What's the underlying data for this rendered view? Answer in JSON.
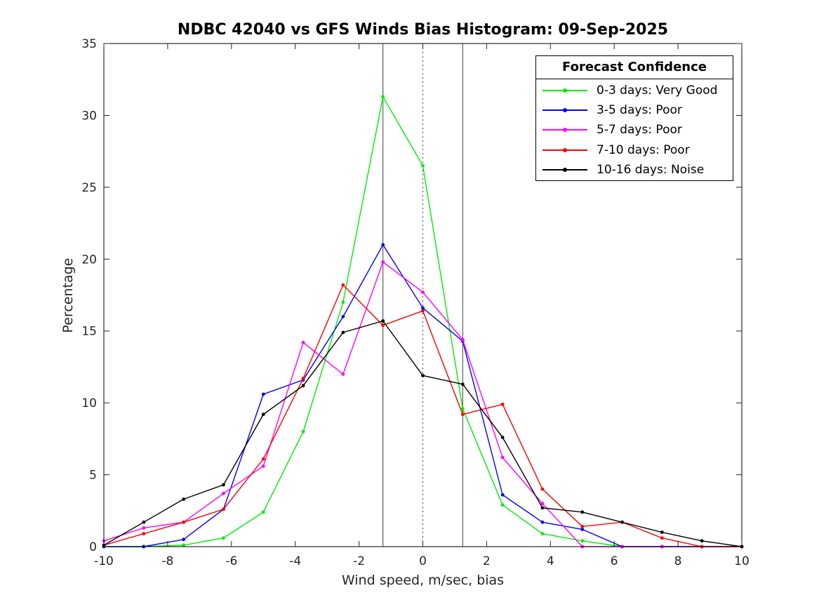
{
  "figure_title": "NDBC 42040 vs GFS Winds Bias Histogram: 09-Sep-2025",
  "chart_data": {
    "type": "line",
    "title": "NDBC 42040 vs GFS Winds Bias Histogram: 09-Sep-2025",
    "xlabel": "Wind speed, m/sec, bias",
    "ylabel": "Percentage",
    "xlim": [
      -10,
      10
    ],
    "ylim": [
      0,
      35
    ],
    "xticks": [
      -10,
      -8,
      -6,
      -4,
      -2,
      0,
      2,
      4,
      6,
      8,
      10
    ],
    "yticks": [
      0,
      5,
      10,
      15,
      20,
      25,
      30,
      35
    ],
    "grid": false,
    "legend_title": "Forecast Confidence",
    "legend_position": "top-right",
    "x": [
      -10,
      -8.75,
      -7.5,
      -6.25,
      -5,
      -3.75,
      -2.5,
      -1.25,
      0,
      1.25,
      2.5,
      3.75,
      5,
      6.25,
      7.5,
      8.75,
      10
    ],
    "series": [
      {
        "name": "0-3 days: Very Good",
        "color": "#00ee00",
        "values": [
          0,
          0,
          0.1,
          0.6,
          2.4,
          8.0,
          17.0,
          31.3,
          26.5,
          9.6,
          2.9,
          0.9,
          0.4,
          0,
          0,
          0,
          0
        ]
      },
      {
        "name": "3-5 days: Poor",
        "color": "#0000ff",
        "values": [
          0,
          0,
          0.5,
          2.6,
          10.6,
          11.6,
          16.0,
          21.0,
          16.6,
          14.3,
          3.6,
          1.7,
          1.2,
          0,
          0,
          0,
          0
        ]
      },
      {
        "name": "5-7 days: Poor",
        "color": "#ff00ff",
        "values": [
          0.4,
          1.3,
          1.7,
          3.7,
          5.6,
          14.2,
          12.0,
          19.8,
          17.7,
          14.4,
          6.2,
          3.0,
          0,
          0,
          0,
          0,
          0
        ]
      },
      {
        "name": "7-10 days: Poor",
        "color": "#ff0000",
        "values": [
          0.1,
          0.9,
          1.7,
          2.6,
          6.1,
          11.7,
          18.2,
          15.4,
          16.4,
          9.2,
          9.9,
          4.0,
          1.4,
          1.7,
          0.6,
          0,
          0
        ]
      },
      {
        "name": "10-16 days: Noise",
        "color": "#000000",
        "values": [
          0.1,
          1.7,
          3.3,
          4.3,
          9.2,
          11.2,
          14.9,
          15.7,
          11.9,
          11.3,
          7.6,
          2.7,
          2.4,
          1.7,
          1.0,
          0.4,
          0
        ]
      }
    ],
    "reference_lines": [
      {
        "x": -1.25,
        "style": "solid"
      },
      {
        "x": 0,
        "style": "dotted"
      },
      {
        "x": 1.25,
        "style": "solid"
      }
    ]
  }
}
